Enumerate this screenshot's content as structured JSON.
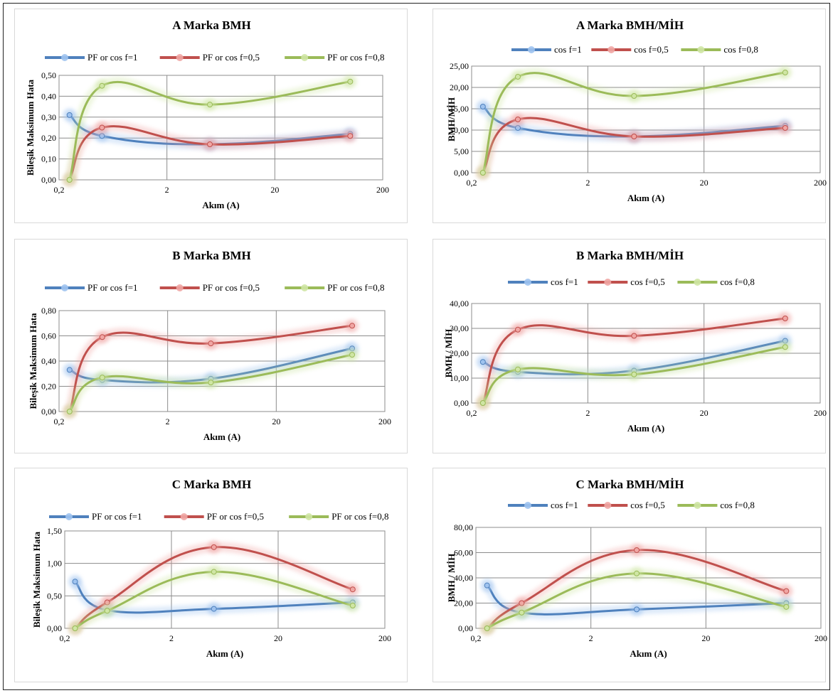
{
  "chart_data": [
    {
      "type": "line",
      "title": "A Marka BMH",
      "xlabel": "Akım (A)",
      "ylabel": "Bileşik Maksimum Hata",
      "x_scale": "log",
      "xlim": [
        0.2,
        200
      ],
      "x_ticks": [
        "0,2",
        "2",
        "20",
        "200"
      ],
      "ylim": [
        0,
        0.5
      ],
      "y_ticks": [
        "0,00",
        "0,10",
        "0,20",
        "0,30",
        "0,40",
        "0,50"
      ],
      "grid": true,
      "legend": "top",
      "x": [
        0.25,
        0.5,
        5,
        100
      ],
      "series": [
        {
          "name": "PF or cos f=1",
          "color": "#4f81bd",
          "values": [
            0.31,
            0.21,
            0.17,
            0.22
          ]
        },
        {
          "name": "PF or cos f=0,5",
          "color": "#c0504d",
          "values": [
            0.0,
            0.25,
            0.17,
            0.21
          ]
        },
        {
          "name": "PF or cos f=0,8",
          "color": "#9bbb59",
          "values": [
            0.0,
            0.45,
            0.36,
            0.47
          ]
        }
      ]
    },
    {
      "type": "line",
      "title": "A Marka BMH/MİH",
      "xlabel": "Akım (A)",
      "ylabel": "BMH/MİH",
      "x_scale": "log",
      "xlim": [
        0.2,
        200
      ],
      "x_ticks": [
        "0,2",
        "2",
        "20",
        "200"
      ],
      "ylim": [
        0,
        25
      ],
      "y_ticks": [
        "0,00",
        "5,00",
        "10,00",
        "15,00",
        "20,00",
        "25,00"
      ],
      "grid": true,
      "legend": "top",
      "x": [
        0.25,
        0.5,
        5,
        100
      ],
      "series": [
        {
          "name": "cos f=1",
          "color": "#4f81bd",
          "values": [
            15.5,
            10.5,
            8.5,
            11.0
          ]
        },
        {
          "name": "cos f=0,5",
          "color": "#c0504d",
          "values": [
            0.0,
            12.5,
            8.5,
            10.5
          ]
        },
        {
          "name": "cos f=0,8",
          "color": "#9bbb59",
          "values": [
            0.0,
            22.5,
            18.0,
            23.5
          ]
        }
      ]
    },
    {
      "type": "line",
      "title": "B Marka BMH",
      "xlabel": "Akım (A)",
      "ylabel": "Bileşik Maksimum Hata",
      "x_scale": "log",
      "xlim": [
        0.2,
        200
      ],
      "x_ticks": [
        "0,2",
        "2",
        "20",
        "200"
      ],
      "ylim": [
        0,
        0.8
      ],
      "y_ticks": [
        "0,00",
        "0,20",
        "0,40",
        "0,60",
        "0,80"
      ],
      "grid": true,
      "legend": "top",
      "x": [
        0.25,
        0.5,
        5,
        100
      ],
      "series": [
        {
          "name": "PF or cos f=1",
          "color": "#4f81bd",
          "values": [
            0.33,
            0.25,
            0.26,
            0.5
          ]
        },
        {
          "name": "PF or cos f=0,5",
          "color": "#c0504d",
          "values": [
            0.0,
            0.59,
            0.54,
            0.68
          ]
        },
        {
          "name": "PF or cos f=0,8",
          "color": "#9bbb59",
          "values": [
            0.0,
            0.27,
            0.23,
            0.45
          ]
        }
      ]
    },
    {
      "type": "line",
      "title": "B Marka BMH/MİH",
      "xlabel": "Akım (A)",
      "ylabel": "BMH / MİH",
      "x_scale": "log",
      "xlim": [
        0.2,
        200
      ],
      "x_ticks": [
        "0,2",
        "2",
        "20",
        "200"
      ],
      "ylim": [
        0,
        40
      ],
      "y_ticks": [
        "0,00",
        "10,00",
        "20,00",
        "30,00",
        "40,00"
      ],
      "grid": true,
      "legend": "top",
      "x": [
        0.25,
        0.5,
        5,
        100
      ],
      "series": [
        {
          "name": "cos f=1",
          "color": "#4f81bd",
          "values": [
            16.5,
            12.5,
            13.0,
            25.0
          ]
        },
        {
          "name": "cos f=0,5",
          "color": "#c0504d",
          "values": [
            0.0,
            29.5,
            27.0,
            34.0
          ]
        },
        {
          "name": "cos f=0,8",
          "color": "#9bbb59",
          "values": [
            0.0,
            13.5,
            11.5,
            22.5
          ]
        }
      ]
    },
    {
      "type": "line",
      "title": "C Marka BMH",
      "xlabel": "Akım (A)",
      "ylabel": "Bileşik  Maksimum Hata",
      "x_scale": "log",
      "xlim": [
        0.2,
        200
      ],
      "x_ticks": [
        "0,2",
        "2",
        "20",
        "200"
      ],
      "ylim": [
        0,
        1.5
      ],
      "y_ticks": [
        "0,00",
        "0,50",
        "1,00",
        "1,50"
      ],
      "grid": true,
      "legend": "top",
      "x": [
        0.25,
        0.5,
        5,
        100
      ],
      "series": [
        {
          "name": "PF or cos f=1",
          "color": "#4f81bd",
          "values": [
            0.72,
            0.28,
            0.3,
            0.4
          ]
        },
        {
          "name": "PF or cos f=0,5",
          "color": "#c0504d",
          "values": [
            0.0,
            0.4,
            1.25,
            0.6
          ]
        },
        {
          "name": "PF or cos f=0,8",
          "color": "#9bbb59",
          "values": [
            0.0,
            0.27,
            0.87,
            0.35
          ]
        }
      ]
    },
    {
      "type": "line",
      "title": "C Marka BMH/MİH",
      "xlabel": "Akım (A)",
      "ylabel": "BMH / MİH",
      "x_scale": "log",
      "xlim": [
        0.2,
        200
      ],
      "x_ticks": [
        "0,2",
        "2",
        "20",
        "200"
      ],
      "ylim": [
        0,
        80
      ],
      "y_ticks": [
        "0,00",
        "20,00",
        "40,00",
        "60,00",
        "80,00"
      ],
      "grid": true,
      "legend": "top",
      "x": [
        0.25,
        0.5,
        5,
        100
      ],
      "series": [
        {
          "name": "cos f=1",
          "color": "#4f81bd",
          "values": [
            34.0,
            12.5,
            15.0,
            20.0
          ]
        },
        {
          "name": "cos f=0,5",
          "color": "#c0504d",
          "values": [
            0.0,
            20.0,
            62.0,
            29.5
          ]
        },
        {
          "name": "cos f=0,8",
          "color": "#9bbb59",
          "values": [
            0.0,
            12.5,
            43.5,
            17.0
          ]
        }
      ]
    }
  ]
}
